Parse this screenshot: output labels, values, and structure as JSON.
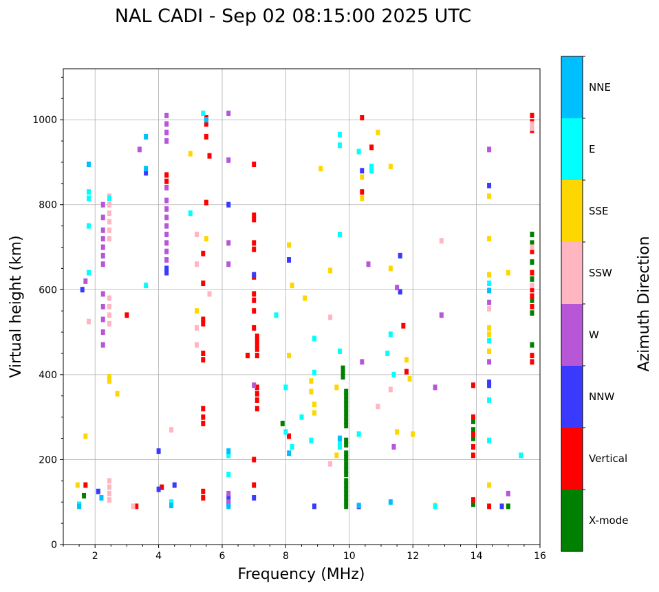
{
  "chart_data": {
    "type": "scatter",
    "title": "NAL CADI - Sep 02 08:15:00 2025 UTC",
    "xlabel": "Frequency (MHz)",
    "ylabel": "Virtual height (km)",
    "xlim": [
      1,
      16
    ],
    "ylim": [
      0,
      1120
    ],
    "xticks": [
      2,
      4,
      6,
      8,
      10,
      12,
      14,
      16
    ],
    "yticks": [
      0,
      200,
      400,
      600,
      800,
      1000
    ],
    "grid": true,
    "colorbar": {
      "label": "Azimuth Direction",
      "position": "right",
      "categories": [
        {
          "name": "X-mode",
          "color": "#008000"
        },
        {
          "name": "Vertical",
          "color": "#ff0000"
        },
        {
          "name": "NNW",
          "color": "#3a3aff"
        },
        {
          "name": "W",
          "color": "#b856d8"
        },
        {
          "name": "SSW",
          "color": "#ffb6c1"
        },
        {
          "name": "SSE",
          "color": "#ffd700"
        },
        {
          "name": "E",
          "color": "#00ffff"
        },
        {
          "name": "NNE",
          "color": "#00bfff"
        }
      ]
    },
    "series": [
      {
        "name": "X-mode",
        "points": [
          [
            9.9,
            90
          ],
          [
            9.9,
            100
          ],
          [
            9.9,
            110
          ],
          [
            9.9,
            120
          ],
          [
            9.9,
            130
          ],
          [
            9.9,
            140
          ],
          [
            9.9,
            150
          ],
          [
            9.9,
            165
          ],
          [
            9.9,
            175
          ],
          [
            9.9,
            185
          ],
          [
            9.9,
            195
          ],
          [
            9.9,
            205
          ],
          [
            9.9,
            215
          ],
          [
            9.9,
            235
          ],
          [
            9.9,
            245
          ],
          [
            9.9,
            280
          ],
          [
            9.9,
            290
          ],
          [
            9.9,
            300
          ],
          [
            9.9,
            310
          ],
          [
            9.9,
            320
          ],
          [
            9.9,
            330
          ],
          [
            9.9,
            340
          ],
          [
            9.9,
            350
          ],
          [
            9.9,
            360
          ],
          [
            9.8,
            395
          ],
          [
            9.8,
            405
          ],
          [
            9.8,
            415
          ],
          [
            13.9,
            95
          ],
          [
            13.9,
            250
          ],
          [
            13.9,
            270
          ],
          [
            13.9,
            290
          ],
          [
            15.0,
            90
          ],
          [
            15.75,
            545
          ],
          [
            15.75,
            575
          ],
          [
            15.75,
            625
          ],
          [
            15.75,
            665
          ],
          [
            15.75,
            710
          ],
          [
            15.75,
            730
          ],
          [
            15.75,
            470
          ],
          [
            1.65,
            115
          ],
          [
            7.9,
            285
          ]
        ]
      },
      {
        "name": "Vertical",
        "points": [
          [
            1.7,
            140
          ],
          [
            4.1,
            135
          ],
          [
            4.25,
            870
          ],
          [
            4.25,
            855
          ],
          [
            5.5,
            1005
          ],
          [
            5.5,
            990
          ],
          [
            5.5,
            960
          ],
          [
            5.6,
            915
          ],
          [
            5.5,
            805
          ],
          [
            5.4,
            685
          ],
          [
            5.4,
            615
          ],
          [
            5.4,
            530
          ],
          [
            5.4,
            520
          ],
          [
            5.4,
            450
          ],
          [
            5.4,
            435
          ],
          [
            5.4,
            320
          ],
          [
            5.4,
            300
          ],
          [
            5.4,
            285
          ],
          [
            5.4,
            125
          ],
          [
            5.4,
            110
          ],
          [
            7.0,
            895
          ],
          [
            7.0,
            775
          ],
          [
            7.0,
            765
          ],
          [
            7.0,
            710
          ],
          [
            7.0,
            695
          ],
          [
            7.0,
            630
          ],
          [
            7.0,
            590
          ],
          [
            7.0,
            575
          ],
          [
            7.0,
            550
          ],
          [
            7.0,
            510
          ],
          [
            7.1,
            490
          ],
          [
            7.1,
            480
          ],
          [
            7.1,
            470
          ],
          [
            7.1,
            460
          ],
          [
            7.1,
            445
          ],
          [
            7.1,
            370
          ],
          [
            7.1,
            355
          ],
          [
            7.1,
            340
          ],
          [
            7.1,
            320
          ],
          [
            7.0,
            200
          ],
          [
            7.0,
            140
          ],
          [
            10.4,
            1005
          ],
          [
            10.7,
            935
          ],
          [
            10.4,
            830
          ],
          [
            11.7,
            515
          ],
          [
            11.8,
            407
          ],
          [
            13.9,
            375
          ],
          [
            13.9,
            300
          ],
          [
            13.9,
            260
          ],
          [
            13.9,
            230
          ],
          [
            13.9,
            210
          ],
          [
            13.9,
            105
          ],
          [
            14.4,
            90
          ],
          [
            15.75,
            1010
          ],
          [
            15.75,
            995
          ],
          [
            15.75,
            975
          ],
          [
            15.75,
            600
          ],
          [
            15.75,
            585
          ],
          [
            15.75,
            560
          ],
          [
            15.75,
            640
          ],
          [
            15.75,
            690
          ],
          [
            15.75,
            445
          ],
          [
            15.75,
            430
          ],
          [
            6.8,
            445
          ],
          [
            3.3,
            90
          ],
          [
            3.0,
            540
          ],
          [
            8.1,
            255
          ]
        ]
      },
      {
        "name": "NNW",
        "points": [
          [
            4.25,
            650
          ],
          [
            4.25,
            640
          ],
          [
            4.0,
            220
          ],
          [
            3.6,
            875
          ],
          [
            6.2,
            800
          ],
          [
            7.0,
            635
          ],
          [
            8.1,
            670
          ],
          [
            10.4,
            880
          ],
          [
            11.6,
            680
          ],
          [
            14.4,
            845
          ],
          [
            14.4,
            382
          ],
          [
            14.4,
            375
          ],
          [
            6.2,
            110
          ],
          [
            6.2,
            95
          ],
          [
            8.9,
            90
          ],
          [
            10.3,
            90
          ],
          [
            14.8,
            90
          ],
          [
            2.1,
            125
          ],
          [
            1.6,
            600
          ],
          [
            4.0,
            130
          ],
          [
            4.5,
            140
          ],
          [
            11.6,
            595
          ],
          [
            7.0,
            110
          ]
        ]
      },
      {
        "name": "W",
        "points": [
          [
            2.25,
            800
          ],
          [
            2.25,
            770
          ],
          [
            2.25,
            740
          ],
          [
            2.25,
            720
          ],
          [
            2.25,
            700
          ],
          [
            2.25,
            680
          ],
          [
            2.25,
            660
          ],
          [
            2.25,
            590
          ],
          [
            2.25,
            560
          ],
          [
            2.25,
            530
          ],
          [
            2.25,
            500
          ],
          [
            2.25,
            470
          ],
          [
            4.25,
            1010
          ],
          [
            4.25,
            990
          ],
          [
            4.25,
            970
          ],
          [
            4.25,
            950
          ],
          [
            4.25,
            840
          ],
          [
            4.25,
            810
          ],
          [
            4.25,
            790
          ],
          [
            4.25,
            770
          ],
          [
            4.25,
            750
          ],
          [
            4.25,
            730
          ],
          [
            4.25,
            710
          ],
          [
            4.25,
            690
          ],
          [
            4.25,
            670
          ],
          [
            6.2,
            1015
          ],
          [
            6.2,
            905
          ],
          [
            6.2,
            710
          ],
          [
            6.2,
            660
          ],
          [
            6.2,
            120
          ],
          [
            6.2,
            100
          ],
          [
            10.4,
            430
          ],
          [
            10.6,
            660
          ],
          [
            11.5,
            605
          ],
          [
            14.4,
            930
          ],
          [
            14.4,
            570
          ],
          [
            14.4,
            430
          ],
          [
            12.7,
            370
          ],
          [
            12.9,
            540
          ],
          [
            15.0,
            120
          ],
          [
            1.7,
            620
          ],
          [
            3.4,
            930
          ],
          [
            11.4,
            230
          ],
          [
            7.0,
            375
          ]
        ]
      },
      {
        "name": "SSW",
        "points": [
          [
            2.45,
            820
          ],
          [
            2.45,
            800
          ],
          [
            2.45,
            780
          ],
          [
            2.45,
            760
          ],
          [
            2.45,
            740
          ],
          [
            2.45,
            720
          ],
          [
            2.45,
            580
          ],
          [
            2.45,
            560
          ],
          [
            2.45,
            540
          ],
          [
            2.45,
            520
          ],
          [
            2.45,
            150
          ],
          [
            2.45,
            135
          ],
          [
            2.45,
            120
          ],
          [
            2.45,
            105
          ],
          [
            5.2,
            730
          ],
          [
            5.2,
            660
          ],
          [
            5.2,
            510
          ],
          [
            5.2,
            470
          ],
          [
            5.6,
            590
          ],
          [
            9.4,
            535
          ],
          [
            9.4,
            190
          ],
          [
            10.9,
            325
          ],
          [
            11.3,
            365
          ],
          [
            12.9,
            715
          ],
          [
            14.4,
            555
          ],
          [
            15.75,
            990
          ],
          [
            15.75,
            980
          ],
          [
            15.75,
            610
          ],
          [
            15.75,
            700
          ],
          [
            4.4,
            270
          ],
          [
            1.8,
            525
          ],
          [
            3.2,
            90
          ]
        ]
      },
      {
        "name": "SSE",
        "points": [
          [
            1.45,
            140
          ],
          [
            2.45,
            395
          ],
          [
            2.45,
            385
          ],
          [
            5.0,
            920
          ],
          [
            5.5,
            720
          ],
          [
            5.2,
            550
          ],
          [
            8.1,
            705
          ],
          [
            8.2,
            610
          ],
          [
            8.6,
            580
          ],
          [
            8.8,
            385
          ],
          [
            8.8,
            360
          ],
          [
            8.9,
            330
          ],
          [
            8.9,
            310
          ],
          [
            9.1,
            885
          ],
          [
            9.4,
            645
          ],
          [
            9.6,
            370
          ],
          [
            10.4,
            865
          ],
          [
            10.4,
            815
          ],
          [
            10.9,
            970
          ],
          [
            11.3,
            890
          ],
          [
            11.3,
            650
          ],
          [
            11.5,
            265
          ],
          [
            11.8,
            435
          ],
          [
            11.9,
            390
          ],
          [
            12.0,
            260
          ],
          [
            14.4,
            720
          ],
          [
            14.4,
            635
          ],
          [
            14.4,
            510
          ],
          [
            14.4,
            495
          ],
          [
            14.4,
            455
          ],
          [
            14.4,
            140
          ],
          [
            14.4,
            820
          ],
          [
            15.0,
            640
          ],
          [
            8.1,
            445
          ],
          [
            9.6,
            210
          ],
          [
            12.7,
            92
          ],
          [
            2.7,
            355
          ],
          [
            1.7,
            255
          ]
        ]
      },
      {
        "name": "E",
        "points": [
          [
            1.8,
            830
          ],
          [
            1.8,
            815
          ],
          [
            1.8,
            750
          ],
          [
            1.8,
            640
          ],
          [
            2.45,
            815
          ],
          [
            3.6,
            610
          ],
          [
            5.0,
            780
          ],
          [
            5.4,
            1015
          ],
          [
            7.7,
            540
          ],
          [
            8.0,
            265
          ],
          [
            8.2,
            230
          ],
          [
            8.5,
            300
          ],
          [
            8.8,
            245
          ],
          [
            8.9,
            405
          ],
          [
            8.9,
            485
          ],
          [
            9.7,
            240
          ],
          [
            9.7,
            230
          ],
          [
            9.7,
            455
          ],
          [
            9.7,
            940
          ],
          [
            9.7,
            965
          ],
          [
            9.7,
            730
          ],
          [
            10.3,
            925
          ],
          [
            10.3,
            260
          ],
          [
            10.7,
            890
          ],
          [
            10.7,
            880
          ],
          [
            11.3,
            495
          ],
          [
            11.4,
            400
          ],
          [
            12.7,
            90
          ],
          [
            14.4,
            480
          ],
          [
            14.4,
            340
          ],
          [
            14.4,
            245
          ],
          [
            14.4,
            615
          ],
          [
            15.4,
            210
          ],
          [
            1.5,
            95
          ],
          [
            4.4,
            100
          ],
          [
            6.2,
            165
          ],
          [
            6.2,
            210
          ],
          [
            8.0,
            370
          ],
          [
            11.2,
            450
          ]
        ]
      },
      {
        "name": "NNE",
        "points": [
          [
            1.8,
            895
          ],
          [
            3.6,
            960
          ],
          [
            3.6,
            885
          ],
          [
            5.5,
            1000
          ],
          [
            10.3,
            92
          ],
          [
            1.5,
            90
          ],
          [
            2.2,
            110
          ],
          [
            4.4,
            92
          ],
          [
            6.2,
            90
          ],
          [
            6.2,
            220
          ],
          [
            8.1,
            215
          ],
          [
            9.7,
            250
          ],
          [
            11.3,
            100
          ],
          [
            14.4,
            598
          ]
        ]
      }
    ]
  }
}
